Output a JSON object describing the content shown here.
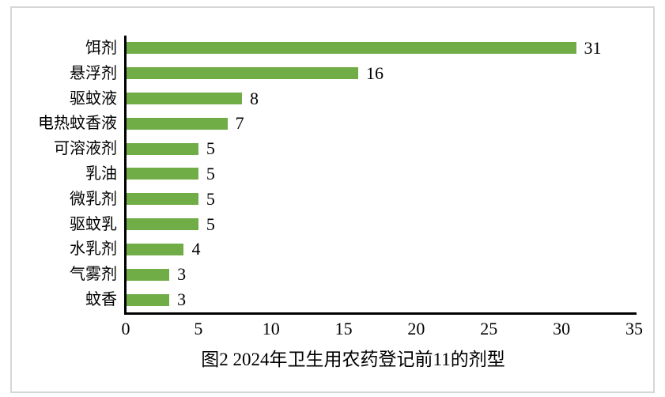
{
  "frame": {
    "background": "#ffffff",
    "border_color": "#d6d6d6"
  },
  "chart_data": {
    "type": "bar",
    "orientation": "horizontal",
    "title": "图2 2024年卫生用农药登记前11的剂型",
    "categories": [
      "饵剂",
      "悬浮剂",
      "驱蚊液",
      "电热蚊香液",
      "可溶液剂",
      "乳油",
      "微乳剂",
      "驱蚊乳",
      "水乳剂",
      "气雾剂",
      "蚊香"
    ],
    "values": [
      31,
      16,
      8,
      7,
      5,
      5,
      5,
      5,
      4,
      3,
      3
    ],
    "value_labels": true,
    "xlabel": "",
    "ylabel": "",
    "xlim": [
      0,
      35
    ],
    "x_ticks": [
      "0",
      "5",
      "10",
      "15",
      "20",
      "25",
      "30",
      "35"
    ],
    "grid": false,
    "legend": false,
    "bar_color": "#70ad47",
    "axis_color": "#000000",
    "text_color": "#000000"
  }
}
